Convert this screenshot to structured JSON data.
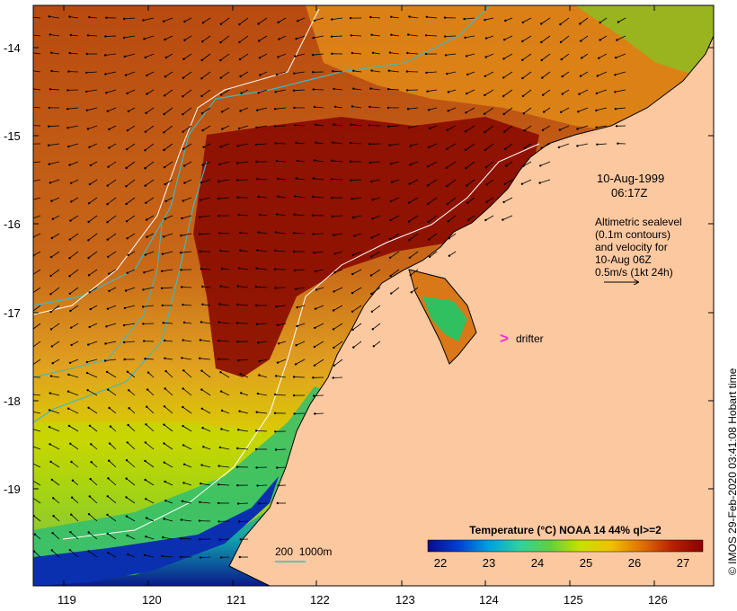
{
  "map": {
    "lat_labels": [
      "-14",
      "-15",
      "-16",
      "-17",
      "-18",
      "-19"
    ],
    "lon_labels": [
      "119",
      "120",
      "121",
      "122",
      "123",
      "124",
      "125",
      "126"
    ],
    "land_color": "#fcc8a0",
    "contour_color": "#40b8c0"
  },
  "annotation": {
    "date": "10-Aug-1999",
    "time": "06:17Z",
    "desc_lines": [
      "Altimetric sealevel",
      "(0.1m contours)",
      "and velocity for",
      "10-Aug 06Z",
      "0.5m/s (1kt 24h)"
    ]
  },
  "drifter": {
    "symbol": ">",
    "label": "drifter",
    "color": "#ff22ff"
  },
  "depth_legend": {
    "label": "200  1000m"
  },
  "colorbar": {
    "title": "Temperature (°C) NOAA 14 44% ql>=2",
    "ticks": [
      "22",
      "23",
      "24",
      "25",
      "26",
      "27"
    ],
    "colors": [
      "#0a0a8a",
      "#0040d0",
      "#00a0e0",
      "#30d0a0",
      "#60d040",
      "#c8e000",
      "#f0c000",
      "#e07000",
      "#b82000",
      "#8a0000"
    ]
  },
  "credit": "© IMOS 29-Feb-2020 03:41:08 Hobart time",
  "icons": [
    "north-arrow-icon"
  ]
}
